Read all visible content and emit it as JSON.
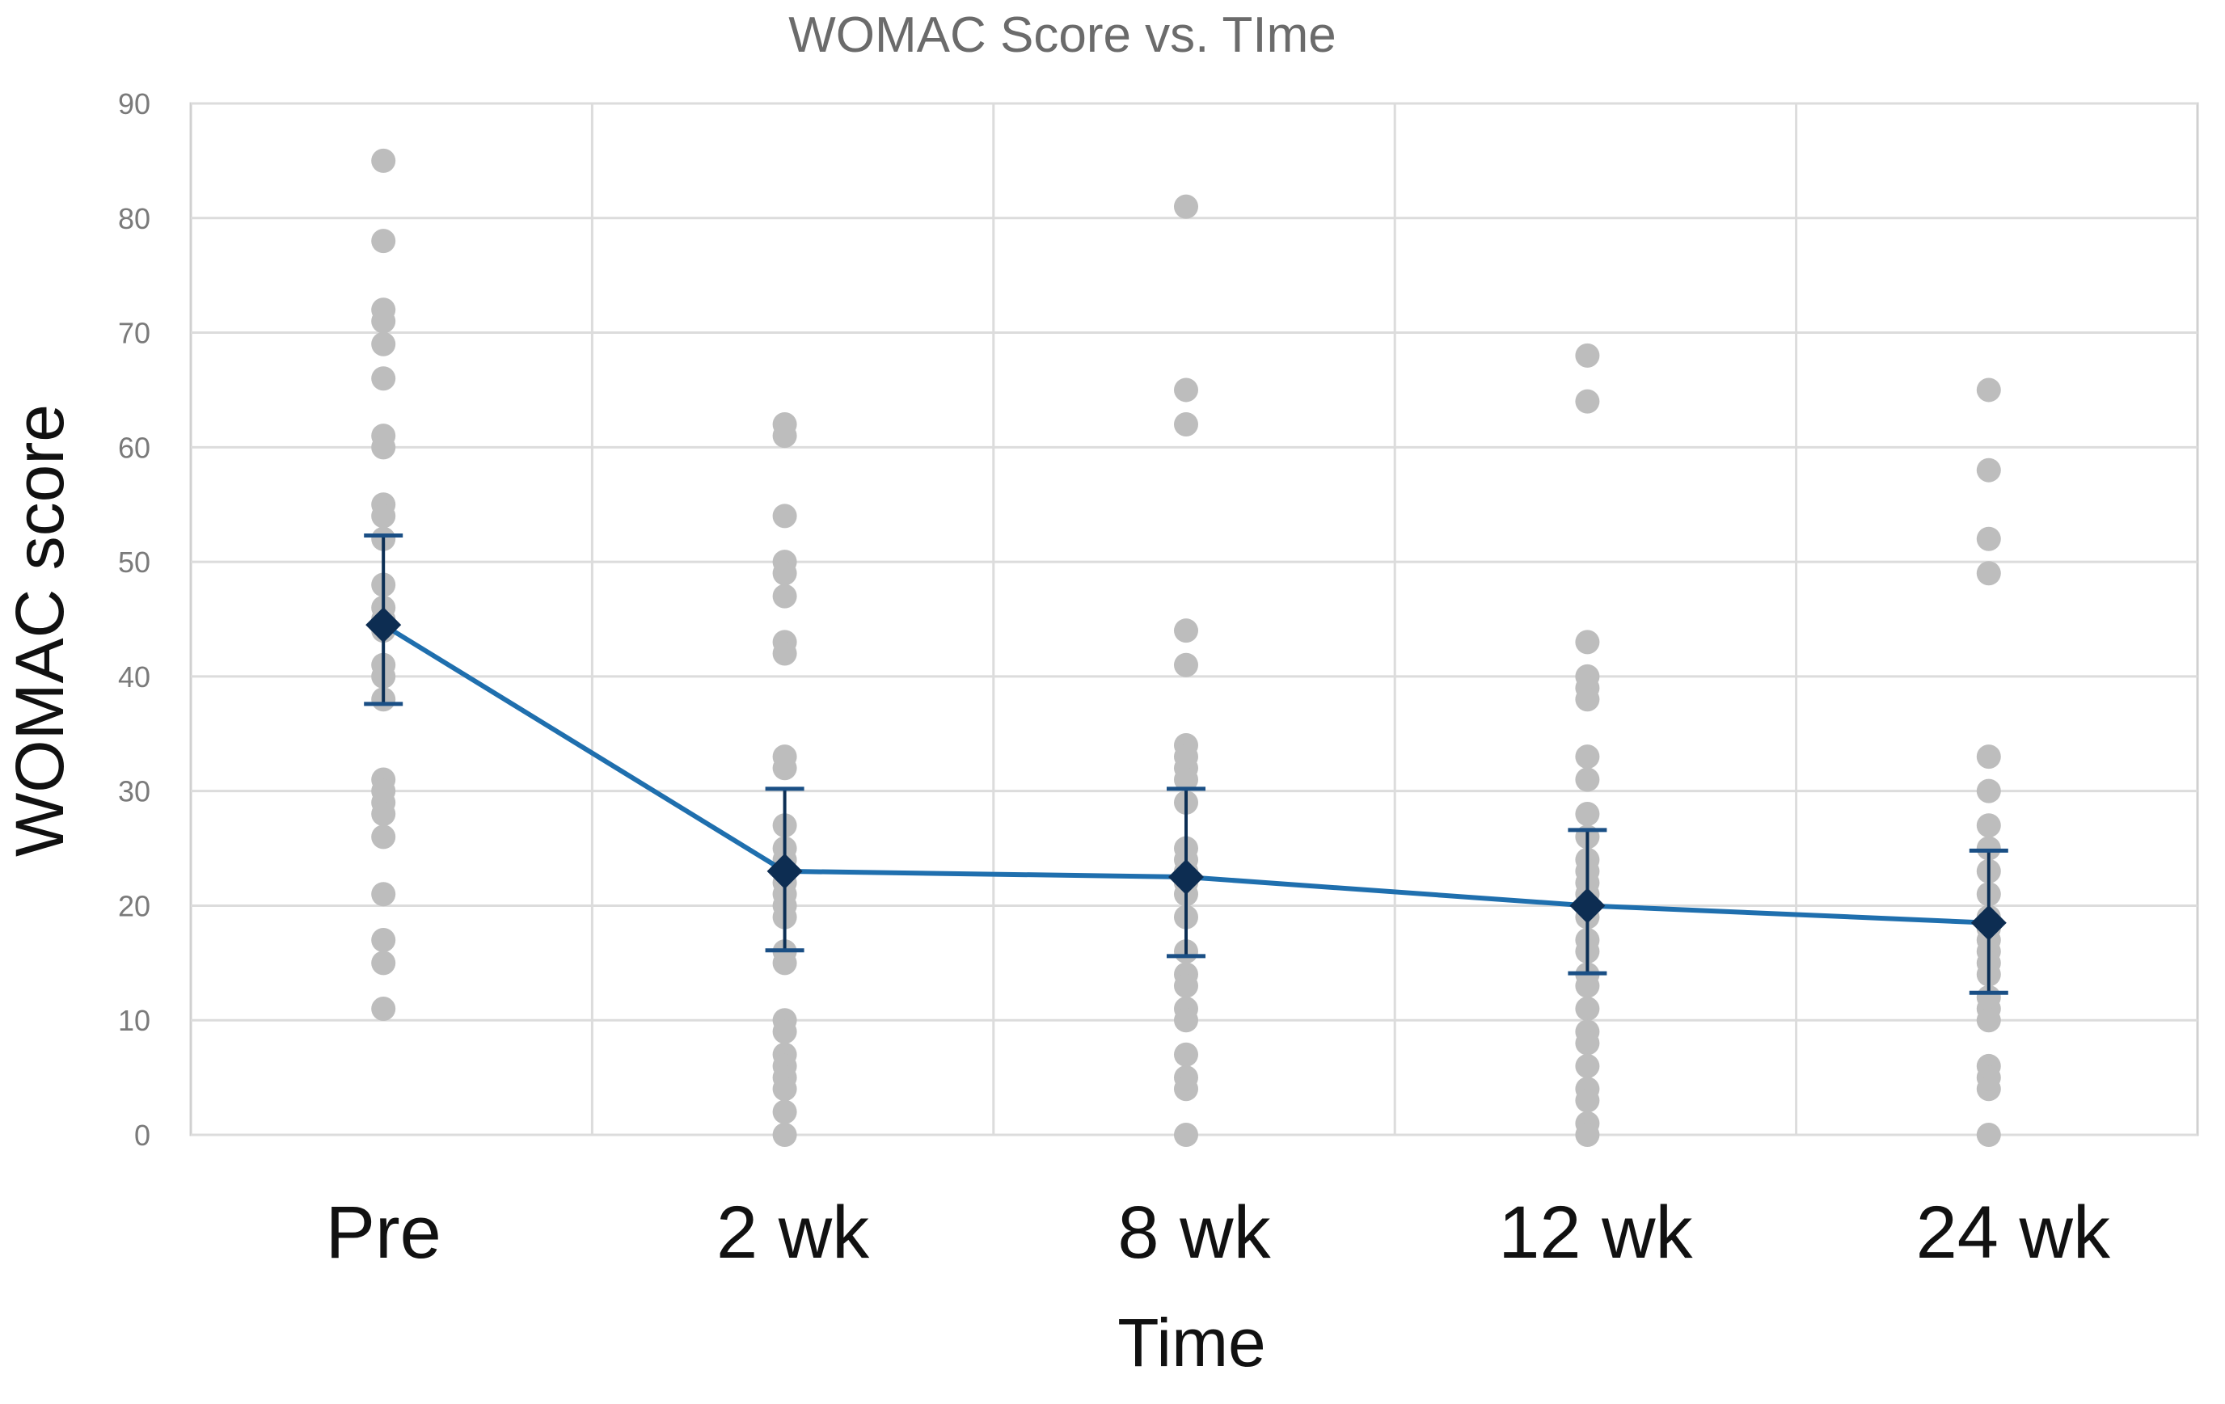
{
  "chart_data": {
    "type": "scatter",
    "title": "WOMAC Score vs. TIme",
    "xlabel": "Time",
    "ylabel": "WOMAC score",
    "categories": [
      "Pre",
      "2 wk",
      "8 wk",
      "12 wk",
      "24 wk"
    ],
    "ylim": [
      0,
      90
    ],
    "yticks": [
      0,
      10,
      20,
      30,
      40,
      50,
      60,
      70,
      80,
      90
    ],
    "grid": true,
    "individual_points": [
      [
        85,
        78,
        72,
        71,
        69,
        66,
        61,
        60,
        55,
        54,
        52,
        48,
        46,
        45,
        44,
        41,
        40,
        38,
        31,
        30,
        29,
        28,
        26,
        21,
        17,
        15,
        11
      ],
      [
        62,
        61,
        54,
        50,
        49,
        47,
        43,
        42,
        33,
        32,
        27,
        25,
        24,
        23,
        22,
        21,
        20,
        19,
        16,
        15,
        10,
        9,
        7,
        6,
        5,
        4,
        2,
        0
      ],
      [
        81,
        65,
        62,
        44,
        41,
        34,
        33,
        32,
        31,
        29,
        25,
        24,
        23,
        22,
        21,
        19,
        16,
        14,
        13,
        11,
        10,
        7,
        5,
        4,
        0
      ],
      [
        68,
        64,
        43,
        40,
        39,
        38,
        33,
        31,
        28,
        26,
        24,
        23,
        22,
        21,
        20,
        19,
        17,
        16,
        14,
        13,
        11,
        9,
        8,
        6,
        4,
        3,
        1,
        0
      ],
      [
        65,
        58,
        52,
        49,
        33,
        30,
        27,
        25,
        23,
        21,
        19,
        18,
        17,
        16,
        15,
        14,
        12,
        11,
        10,
        6,
        5,
        4,
        0
      ]
    ],
    "series": [
      {
        "name": "Mean",
        "values": [
          44.5,
          23.0,
          22.5,
          20.0,
          18.5
        ],
        "error_upper": [
          52.3,
          30.2,
          30.2,
          26.6,
          24.8
        ],
        "error_lower": [
          37.6,
          16.1,
          15.6,
          14.1,
          12.4
        ]
      }
    ],
    "colors": {
      "points": "#bdbdbd",
      "mean_line": "#1f6fae",
      "mean_marker": "#0d2d52",
      "error_bar": "#0c2f55"
    }
  }
}
